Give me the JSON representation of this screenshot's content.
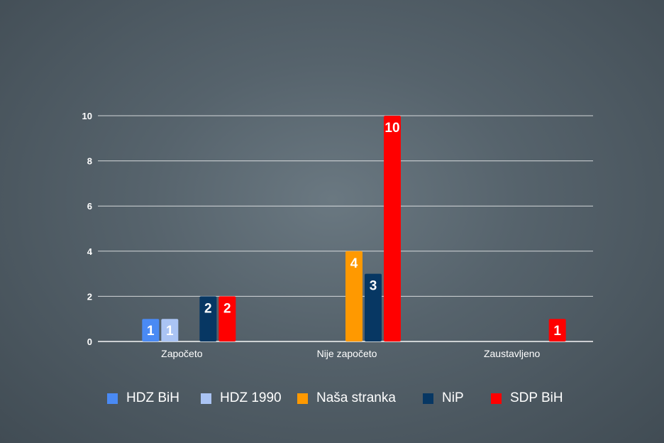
{
  "chart_data": {
    "type": "bar",
    "categories": [
      "Započeto",
      "Nije započeto",
      "Zaustavljeno"
    ],
    "series": [
      {
        "name": "HDZ BiH",
        "color": "#4a8af4",
        "values": [
          1,
          null,
          null
        ]
      },
      {
        "name": "HDZ 1990",
        "color": "#aac4f4",
        "values": [
          1,
          null,
          null
        ]
      },
      {
        "name": "Naša stranka",
        "color": "#ff9900",
        "values": [
          null,
          4,
          null
        ]
      },
      {
        "name": "NiP",
        "color": "#073763",
        "values": [
          2,
          3,
          null
        ]
      },
      {
        "name": "SDP BiH",
        "color": "#ff0000",
        "values": [
          2,
          10,
          1
        ]
      }
    ],
    "ylim": [
      0,
      10
    ],
    "yticks": [
      0,
      2,
      4,
      6,
      8,
      10
    ],
    "grid": true,
    "legend_position": "bottom",
    "data_labels": true
  }
}
